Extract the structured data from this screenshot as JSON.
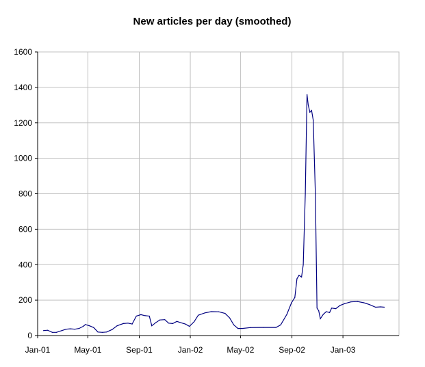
{
  "chart_data": {
    "type": "line",
    "title": "New articles per day (smoothed)",
    "xlabel": "",
    "ylabel": "",
    "ylim": [
      0,
      1600
    ],
    "yticks": [
      0,
      200,
      400,
      600,
      800,
      1000,
      1200,
      1400,
      1600
    ],
    "xticks": [
      "Jan-01",
      "May-01",
      "Sep-01",
      "Jan-02",
      "May-02",
      "Sep-02",
      "Jan-03"
    ],
    "xlim": [
      "2001-01-01",
      "2003-05-15"
    ],
    "grid": true,
    "series": [
      {
        "color": "#000080",
        "points": [
          [
            "2001-01-15",
            28
          ],
          [
            "2001-01-25",
            30
          ],
          [
            "2001-02-05",
            18
          ],
          [
            "2001-02-15",
            18
          ],
          [
            "2001-02-28",
            28
          ],
          [
            "2001-03-10",
            36
          ],
          [
            "2001-03-20",
            38
          ],
          [
            "2001-03-31",
            36
          ],
          [
            "2001-04-10",
            40
          ],
          [
            "2001-04-20",
            52
          ],
          [
            "2001-04-25",
            62
          ],
          [
            "2001-05-05",
            55
          ],
          [
            "2001-05-15",
            45
          ],
          [
            "2001-05-25",
            20
          ],
          [
            "2001-06-05",
            18
          ],
          [
            "2001-06-15",
            20
          ],
          [
            "2001-06-28",
            34
          ],
          [
            "2001-07-10",
            55
          ],
          [
            "2001-07-25",
            68
          ],
          [
            "2001-08-05",
            70
          ],
          [
            "2001-08-15",
            65
          ],
          [
            "2001-08-25",
            110
          ],
          [
            "2001-09-05",
            118
          ],
          [
            "2001-09-15",
            112
          ],
          [
            "2001-09-25",
            110
          ],
          [
            "2001-10-01",
            55
          ],
          [
            "2001-10-10",
            72
          ],
          [
            "2001-10-20",
            88
          ],
          [
            "2001-11-01",
            90
          ],
          [
            "2001-11-10",
            70
          ],
          [
            "2001-11-20",
            68
          ],
          [
            "2001-11-30",
            80
          ],
          [
            "2001-12-10",
            72
          ],
          [
            "2001-12-20",
            65
          ],
          [
            "2001-12-30",
            52
          ],
          [
            "2002-01-10",
            78
          ],
          [
            "2002-01-20",
            115
          ],
          [
            "2002-02-05",
            128
          ],
          [
            "2002-02-20",
            135
          ],
          [
            "2002-03-10",
            134
          ],
          [
            "2002-03-25",
            125
          ],
          [
            "2002-04-05",
            100
          ],
          [
            "2002-04-15",
            60
          ],
          [
            "2002-04-25",
            40
          ],
          [
            "2002-05-05",
            40
          ],
          [
            "2002-05-25",
            45
          ],
          [
            "2002-06-25",
            46
          ],
          [
            "2002-07-25",
            46
          ],
          [
            "2002-08-05",
            60
          ],
          [
            "2002-08-20",
            120
          ],
          [
            "2002-08-31",
            185
          ],
          [
            "2002-09-08",
            215
          ],
          [
            "2002-09-13",
            320
          ],
          [
            "2002-09-18",
            340
          ],
          [
            "2002-09-24",
            330
          ],
          [
            "2002-09-28",
            400
          ],
          [
            "2002-10-03",
            800
          ],
          [
            "2002-10-07",
            1360
          ],
          [
            "2002-10-10",
            1300
          ],
          [
            "2002-10-14",
            1260
          ],
          [
            "2002-10-18",
            1270
          ],
          [
            "2002-10-22",
            1215
          ],
          [
            "2002-10-27",
            800
          ],
          [
            "2002-10-31",
            155
          ],
          [
            "2002-11-04",
            140
          ],
          [
            "2002-11-08",
            95
          ],
          [
            "2002-11-15",
            120
          ],
          [
            "2002-11-22",
            135
          ],
          [
            "2002-11-30",
            130
          ],
          [
            "2002-12-05",
            155
          ],
          [
            "2002-12-15",
            152
          ],
          [
            "2002-12-25",
            170
          ],
          [
            "2003-01-05",
            180
          ],
          [
            "2003-01-20",
            190
          ],
          [
            "2003-02-05",
            192
          ],
          [
            "2003-02-20",
            185
          ],
          [
            "2003-03-05",
            175
          ],
          [
            "2003-03-20",
            160
          ],
          [
            "2003-04-01",
            162
          ],
          [
            "2003-04-10",
            160
          ]
        ]
      }
    ]
  }
}
